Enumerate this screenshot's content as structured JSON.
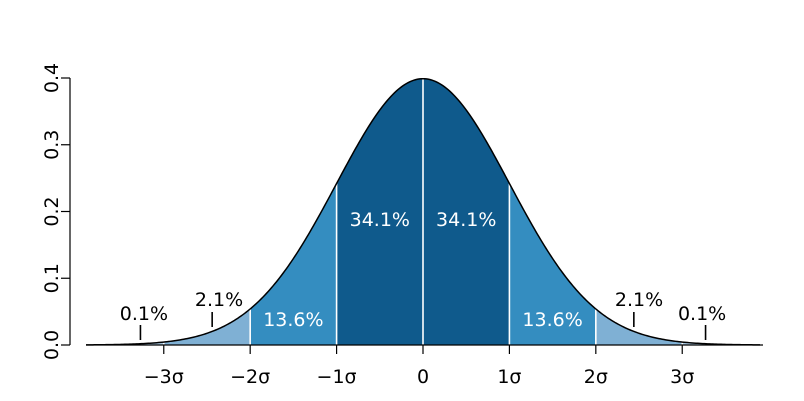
{
  "chart_data": {
    "type": "area",
    "title": "",
    "xlabel": "",
    "ylabel": "",
    "xlim": [
      -3.9,
      3.9
    ],
    "ylim": [
      0,
      0.4
    ],
    "y_ticks": [
      0.0,
      0.1,
      0.2,
      0.3,
      0.4
    ],
    "y_tick_labels": [
      "0.0",
      "0.1",
      "0.2",
      "0.3",
      "0.4"
    ],
    "x_ticks": [
      -3,
      -2,
      -1,
      0,
      1,
      2,
      3
    ],
    "x_tick_labels": [
      "−3σ",
      "−2σ",
      "−1σ",
      "0",
      "1σ",
      "2σ",
      "3σ"
    ],
    "curve": "standard normal density",
    "boundaries": [
      -3,
      -2,
      -1,
      0,
      1,
      2,
      3
    ],
    "regions": [
      {
        "from": -1,
        "to": 0,
        "label": "34.1%",
        "color": "#0f5a8c"
      },
      {
        "from": 0,
        "to": 1,
        "label": "34.1%",
        "color": "#0f5a8c"
      },
      {
        "from": -2,
        "to": -1,
        "label": "13.6%",
        "color": "#348dc0"
      },
      {
        "from": 1,
        "to": 2,
        "label": "13.6%",
        "color": "#348dc0"
      },
      {
        "from": -3,
        "to": -2,
        "label": "2.1%",
        "color": "#7fb0d4"
      },
      {
        "from": 2,
        "to": 3,
        "label": "2.1%",
        "color": "#7fb0d4"
      },
      {
        "from": -3.9,
        "to": -3,
        "label": "0.1%",
        "color": "#a9c9e2"
      },
      {
        "from": 3,
        "to": 3.9,
        "label": "0.1%",
        "color": "#a9c9e2"
      }
    ],
    "grid": false,
    "legend": "none"
  }
}
